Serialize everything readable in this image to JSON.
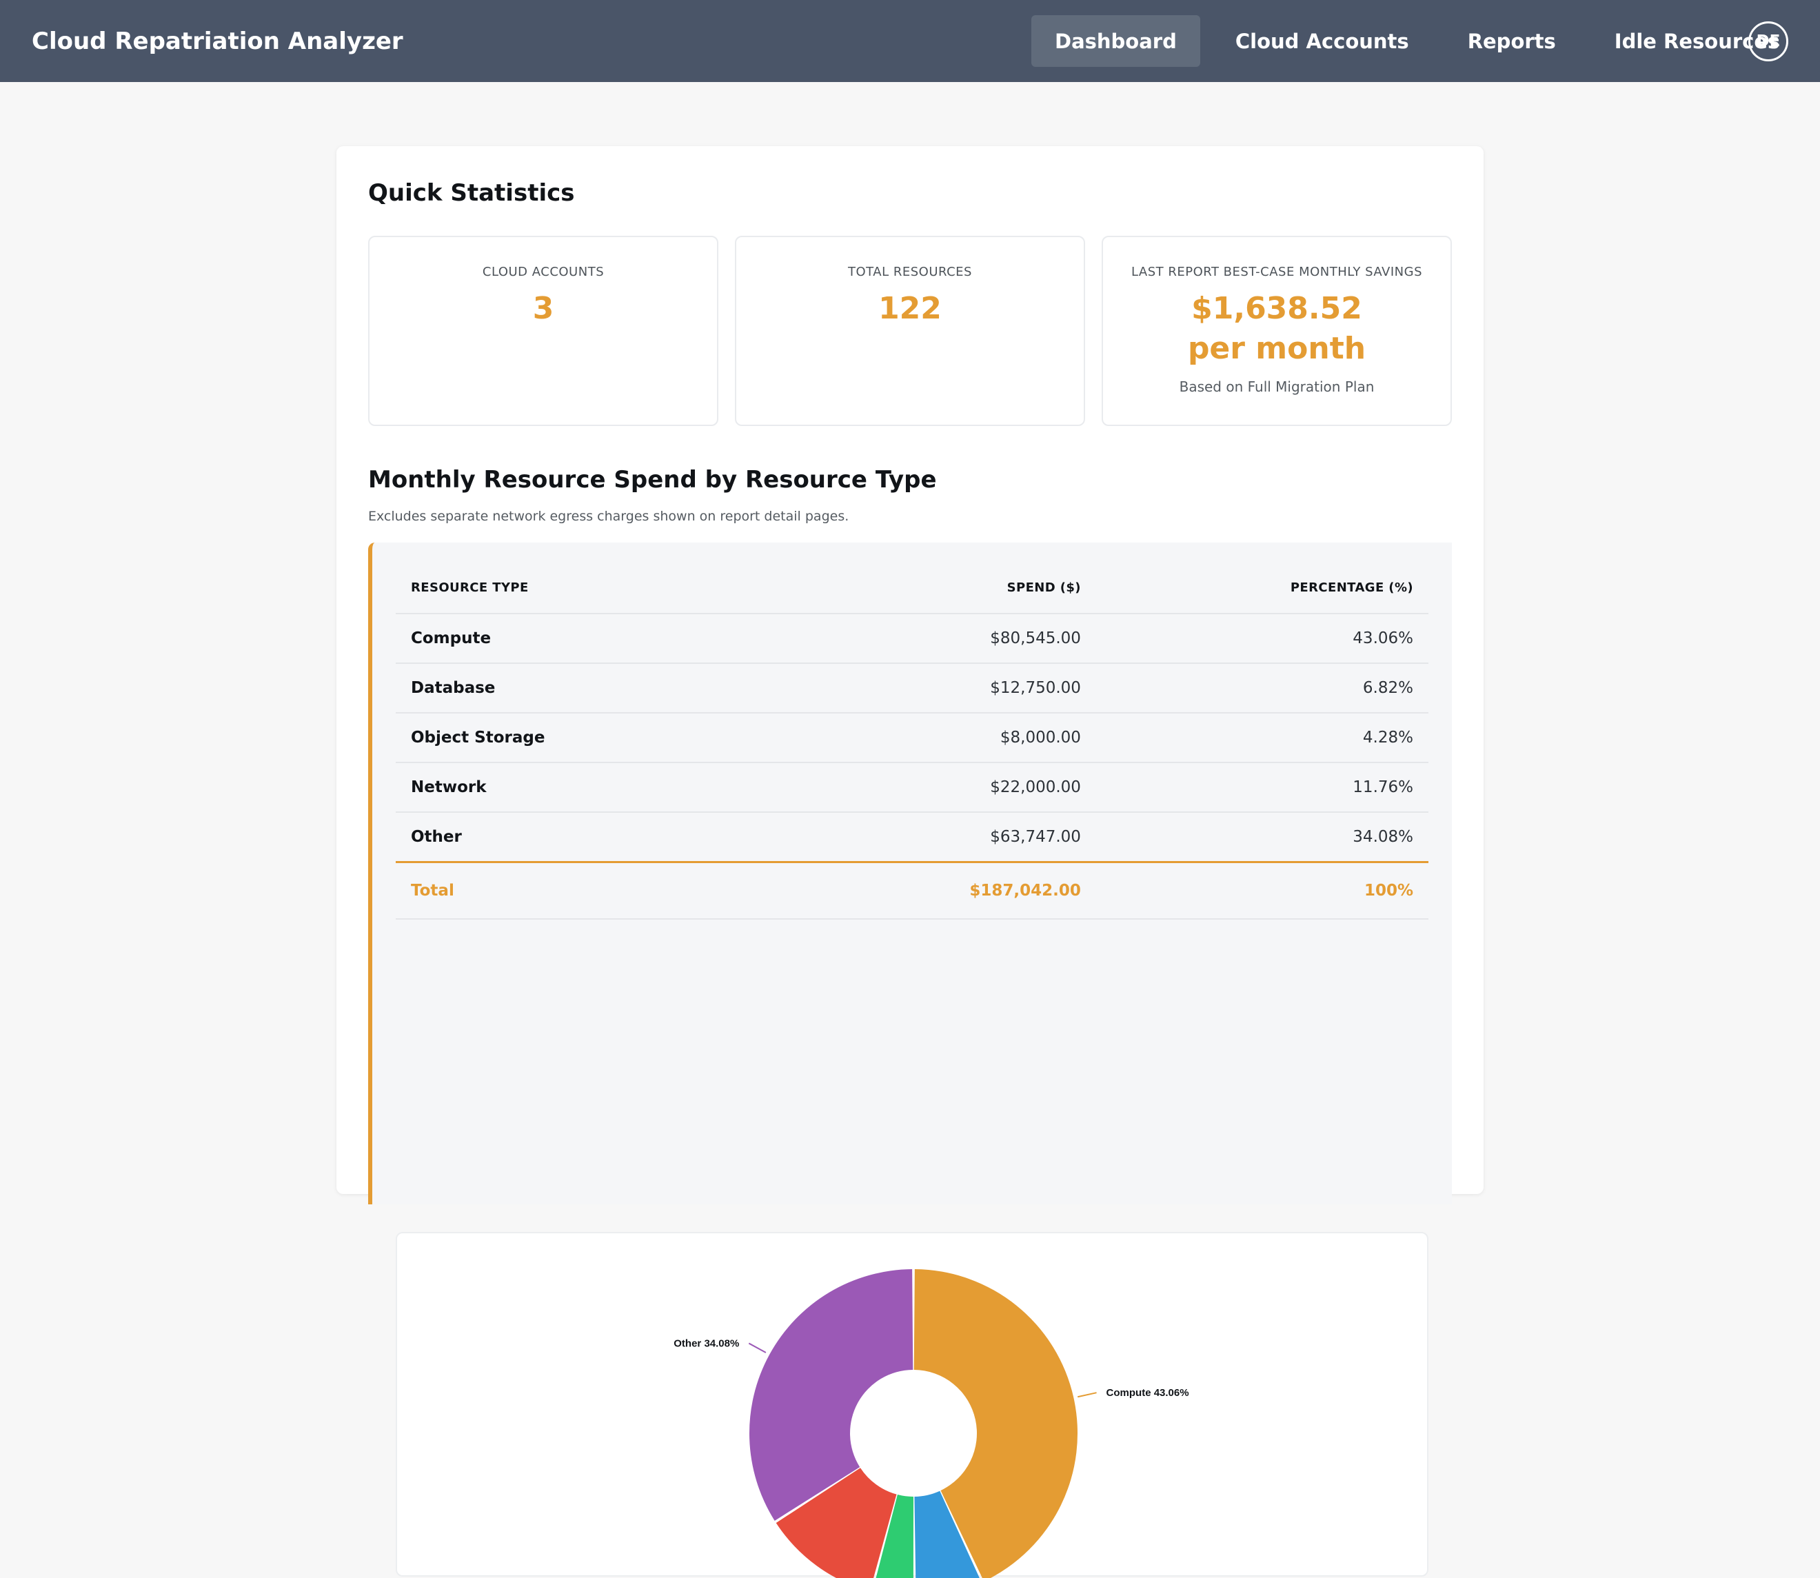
{
  "app": {
    "title": "Cloud Repatriation Analyzer"
  },
  "nav": {
    "items": [
      {
        "label": "Dashboard",
        "active": true
      },
      {
        "label": "Cloud Accounts",
        "active": false
      },
      {
        "label": "Reports",
        "active": false
      },
      {
        "label": "Idle Resources",
        "active": false
      }
    ],
    "avatar_initials": "DE"
  },
  "quick_stats": {
    "title": "Quick Statistics",
    "cards": [
      {
        "label": "CLOUD ACCOUNTS",
        "value": "3",
        "sub": ""
      },
      {
        "label": "TOTAL RESOURCES",
        "value": "122",
        "sub": ""
      },
      {
        "label": "LAST REPORT BEST-CASE MONTHLY SAVINGS",
        "value": "$1,638.52",
        "value2": "per month",
        "sub": "Based on Full Migration Plan"
      }
    ]
  },
  "spend": {
    "title": "Monthly Resource Spend by Resource Type",
    "subtitle": "Excludes separate network egress charges shown on report detail pages.",
    "columns": {
      "type": "RESOURCE TYPE",
      "spend": "SPEND ($)",
      "pct": "PERCENTAGE (%)"
    },
    "rows": [
      {
        "type": "Compute",
        "spend": "$80,545.00",
        "pct": "43.06%"
      },
      {
        "type": "Database",
        "spend": "$12,750.00",
        "pct": "6.82%"
      },
      {
        "type": "Object Storage",
        "spend": "$8,000.00",
        "pct": "4.28%"
      },
      {
        "type": "Network",
        "spend": "$22,000.00",
        "pct": "11.76%"
      },
      {
        "type": "Other",
        "spend": "$63,747.00",
        "pct": "34.08%"
      }
    ],
    "total": {
      "type": "Total",
      "spend": "$187,042.00",
      "pct": "100%"
    }
  },
  "chart_data": {
    "type": "pie",
    "categories": [
      "Compute",
      "Database",
      "Object Storage",
      "Network",
      "Other"
    ],
    "values": [
      43.06,
      6.82,
      4.28,
      11.76,
      34.08
    ],
    "visible_labels": [
      "Compute 43.06%",
      "Other 34.08%"
    ],
    "colors": {
      "Compute": "#e49c33",
      "Other": "#9b59b6"
    }
  },
  "colors": {
    "navbar": "#4a5568",
    "accent": "#e49c33"
  }
}
